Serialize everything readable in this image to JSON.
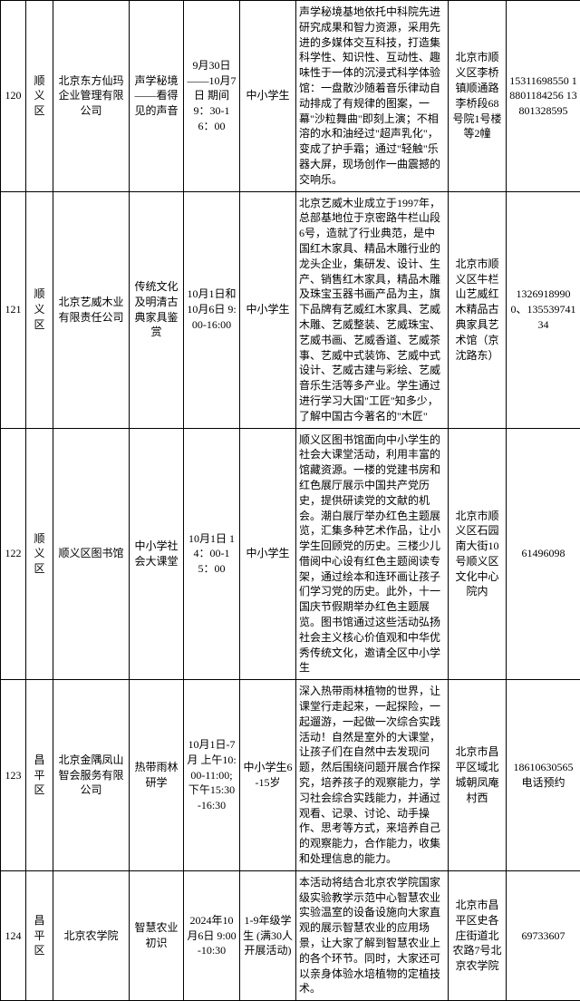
{
  "table": {
    "border_color": "#000000",
    "background_color": "#ffffff",
    "font_size": 12,
    "rows": [
      {
        "idx": "120",
        "district": "顺义区",
        "org": "北京东方仙玛企业管理有限公司",
        "theme": "声学秘境——看得见的声音",
        "time": "9月30日——10月7日 期间 9：30-16：00",
        "audience": "中小学生",
        "desc": "声学秘境基地依托中科院先进研究成果和智力资源，采用先进的多媒体交互科技，打造集科学性、知识性、互动性、趣味性于一体的沉浸式科学体验馆：一盘散沙随着音乐律动自动排成了有规律的图案，一幕\"沙粒舞曲\"即刻上演；不相溶的水和油经过\"超声乳化\"，变成了护手霜；通过\"轻触\"乐器大屏，现场创作一曲震撼的交响乐。",
        "addr": "北京市顺义区李桥镇顺通路李桥段68号院1号楼等2幢",
        "phone": "15311698550 18801184256 13801328595"
      },
      {
        "idx": "121",
        "district": "顺义区",
        "org": "北京艺威木业有限责任公司",
        "theme": "传统文化及明清古典家具鉴赏",
        "time": "10月1日和10月6日 9:00-16:00",
        "audience": "中小学生",
        "desc": "北京艺威木业成立于1997年，总部基地位于京密路牛栏山段6号，造就了行业典范，是中国红木家具、精品木雕行业的龙头企业，集研发、设计、生产、销售红木家具，精品木雕及珠宝玉器书画产品为主，旗下品牌有艺威红木家具、艺威木雕、艺威整装、艺威珠宝、艺威书画、艺威香道、艺威茶事、艺威中式装饰、艺威中式设计、艺威古建与彩绘、艺威音乐生活等多产业。学生通过进行学习大国\"工匠\"知多少，了解中国古今著名的\"木匠\"",
        "addr": "北京市顺义区牛栏山艺威红木精品古典家具艺术馆（京沈路东）",
        "phone": "13269189900、13553974134"
      },
      {
        "idx": "122",
        "district": "顺义区",
        "org": "顺义区图书馆",
        "theme": "中小学社会大课堂",
        "time": "10月1日 14：00-15：00",
        "audience": "中小学生",
        "desc": "顺义区图书馆面向中小学生的社会大课堂活动，利用丰富的馆藏资源。一楼的党建书房和红色展厅展示中国共产党历史，提供研读党的文献的机会。潮白展厅举办红色主题展览，汇集多种艺术作品，让小学生回顾党的历史。三楼少儿借阅中心设有红色主题阅读专架，通过绘本和连环画让孩子们学习党的历史。此外，十一国庆节假期举办红色主题展览。图书馆通过这些活动弘扬社会主义核心价值观和中华优秀传统文化，邀请全区中小学生",
        "addr": "北京市顺义区石园南大街10号顺义区文化中心院内",
        "phone": "61496098"
      },
      {
        "idx": "123",
        "district": "昌平区",
        "org": "北京金隅凤山智会服务有限公司",
        "theme": "热带雨林研学",
        "time": "10月1日-7月 上午10:00-11:00; 下午15:30-16:30",
        "audience": "中小学生6-15岁",
        "desc": "深入热带雨林植物的世界，让课堂行走起来，一起探险，一起遛游，一起做一次综合实践活动！自然是室外的大课堂，让孩子们在自然中去发现问题，然后围绕问题开展合作探究，培养孩子的观察能力，学习社会综合实践能力，并通过观看、记录、讨论、动手操作、思考等方式，来培养自己的观察能力，合作能力，收集和处理信息的能力。",
        "addr": "北京市昌平区域北城朝凤庵村西",
        "phone": "18610630565 电话预约"
      },
      {
        "idx": "124",
        "district": "昌平区",
        "org": "北京农学院",
        "theme": "智慧农业初识",
        "time": "2024年10月6日 9:00-10:30",
        "audience": "1-9年级学生 (满30人开展活动)",
        "desc": "本活动将结合北京农学院国家级实验教学示范中心智慧农业实验温室的设备设施向大家直观的展示智慧农业的应用场景，让大家了解到智慧农业上的各个环节。同时，大家还可以亲身体验水培植物的定植技术。",
        "addr": "北京市昌平区史各庄街道北农路7号北京农学院",
        "phone": "69733607"
      }
    ]
  }
}
